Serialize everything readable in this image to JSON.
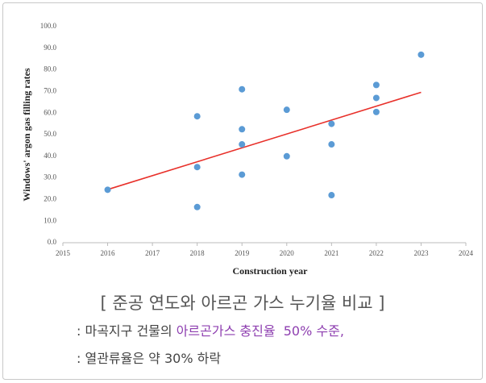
{
  "chart_data": {
    "type": "scatter",
    "ylabel": "Windows' argon gas filling rates",
    "xlabel": "Construction year",
    "xlim": [
      2015,
      2024
    ],
    "xticks": [
      2015,
      2016,
      2017,
      2018,
      2019,
      2020,
      2021,
      2022,
      2023,
      2024
    ],
    "ylim": [
      0,
      100
    ],
    "yticks": [
      {
        "value": 0,
        "label": "0.0"
      },
      {
        "value": 10,
        "label": "10.0"
      },
      {
        "value": 20,
        "label": "20.0"
      },
      {
        "value": 30,
        "label": "30.0"
      },
      {
        "value": 40,
        "label": "40.0"
      },
      {
        "value": 50,
        "label": "50.0"
      },
      {
        "value": 60,
        "label": "60.0"
      },
      {
        "value": 70,
        "label": "70.0"
      },
      {
        "value": 80,
        "label": "80.0"
      },
      {
        "value": 90,
        "label": "90.0"
      },
      {
        "value": 100,
        "label": "100.0"
      }
    ],
    "grid": false,
    "series": [
      {
        "color": "#5b9bd5",
        "x": [
          2016,
          2018,
          2018,
          2018,
          2019,
          2019,
          2019,
          2019,
          2020,
          2020,
          2021,
          2021,
          2021,
          2022,
          2022,
          2022,
          2023
        ],
        "values": [
          24.5,
          58.5,
          35,
          16.5,
          71,
          52.5,
          45.5,
          31.5,
          61.5,
          40,
          55,
          45.5,
          22,
          73,
          67,
          60.5,
          87
        ]
      }
    ],
    "trendline": {
      "color": "#e8302a",
      "x": [
        2016,
        2023
      ],
      "values": [
        24.6,
        69.6
      ]
    }
  },
  "caption": {
    "title": "[ 준공 연도와 아르곤 가스 누기율 비교 ]",
    "lines": [
      [
        ": 마곡지구 건물의 ",
        "아르곤가스 충진율",
        "  50% 수준,"
      ],
      [
        ": 열관류율은 약 30% 하락"
      ]
    ]
  }
}
